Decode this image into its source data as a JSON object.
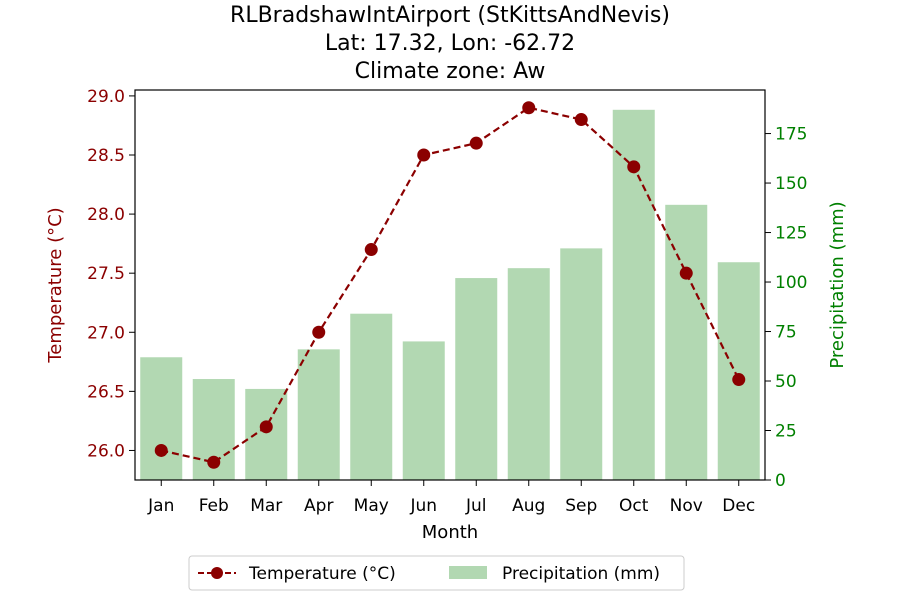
{
  "chart_data": {
    "type": "bar+line",
    "title_lines": [
      "RLBradshawIntAirport (StKittsAndNevis)",
      "Lat: 17.32, Lon: -62.72",
      "Climate zone: Aw"
    ],
    "categories": [
      "Jan",
      "Feb",
      "Mar",
      "Apr",
      "May",
      "Jun",
      "Jul",
      "Aug",
      "Sep",
      "Oct",
      "Nov",
      "Dec"
    ],
    "xlabel": "Month",
    "series": [
      {
        "name": "Temperature (°C)",
        "type": "line",
        "axis": "left",
        "color": "#8b0000",
        "values": [
          26.0,
          25.9,
          26.2,
          27.0,
          27.7,
          28.5,
          28.6,
          28.9,
          28.8,
          28.4,
          27.5,
          26.6
        ]
      },
      {
        "name": "Precipitation (mm)",
        "type": "bar",
        "axis": "right",
        "color": "#b2d8b2",
        "values": [
          62,
          51,
          46,
          66,
          84,
          70,
          102,
          107,
          117,
          187,
          139,
          110
        ]
      }
    ],
    "left_axis": {
      "label": "Temperature (°C)",
      "color": "#8b0000",
      "ylim": [
        25.75,
        29.05
      ],
      "ticks": [
        26.0,
        26.5,
        27.0,
        27.5,
        28.0,
        28.5,
        29.0
      ],
      "tick_labels": [
        "26.0",
        "26.5",
        "27.0",
        "27.5",
        "28.0",
        "28.5",
        "29.0"
      ]
    },
    "right_axis": {
      "label": "Precipitation (mm)",
      "color": "#008000",
      "ylim": [
        0,
        197
      ],
      "ticks": [
        0,
        25,
        50,
        75,
        100,
        125,
        150,
        175
      ],
      "tick_labels": [
        "0",
        "25",
        "50",
        "75",
        "100",
        "125",
        "150",
        "175"
      ]
    },
    "legend": {
      "placement": "bottom-center",
      "entries": [
        "Temperature (°C)",
        "Precipitation (mm)"
      ]
    },
    "grid": false
  }
}
